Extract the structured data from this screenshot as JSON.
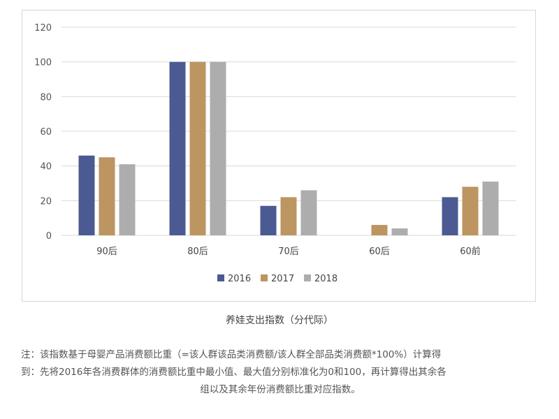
{
  "chart_data": {
    "type": "bar",
    "categories": [
      "90后",
      "80后",
      "70后",
      "60后",
      "60前"
    ],
    "series": [
      {
        "name": "2016",
        "color": "#4b5a92",
        "values": [
          46,
          100,
          17,
          0,
          22
        ]
      },
      {
        "name": "2017",
        "color": "#bc9561",
        "values": [
          45,
          100,
          22,
          6,
          28
        ]
      },
      {
        "name": "2018",
        "color": "#adadad",
        "values": [
          41,
          100,
          26,
          4,
          31
        ]
      }
    ],
    "yticks": [
      0,
      20,
      40,
      60,
      80,
      100,
      120
    ],
    "ylim": [
      0,
      120
    ],
    "grid": true,
    "legend_position": "bottom"
  },
  "caption": "养娃支出指数（分代际）",
  "note": {
    "line1": "注：该指数基于母婴产品消费额比重（=该人群该品类消费额/该人群全部品类消费额*100%）计算得",
    "line2": "到：先将2016年各消费群体的消费额比重中最小值、最大值分别标准化为0和100，再计算得出其余各",
    "line3": "组以及其余年份消费额比重对应指数。"
  }
}
